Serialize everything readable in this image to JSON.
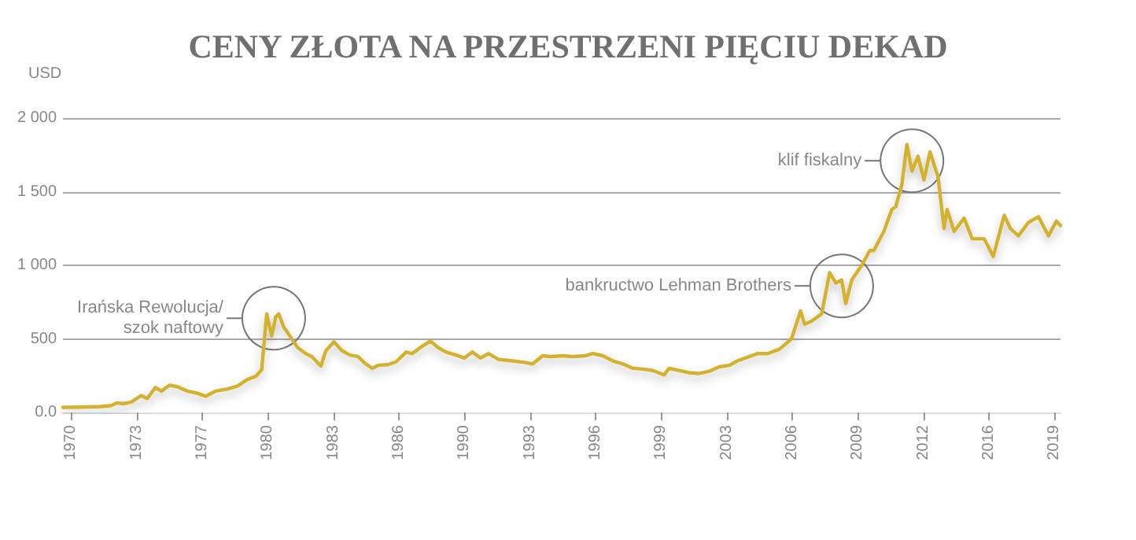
{
  "chart_data": {
    "type": "line",
    "title": "CENY ZŁOTA NA PRZESTRZENI PIĘCIU DEKAD",
    "ylabel": "USD",
    "x": [
      1969.6,
      1970.5,
      1971.5,
      1972.0,
      1972.3,
      1972.6,
      1973.0,
      1973.5,
      1973.8,
      1974.2,
      1974.5,
      1974.9,
      1975.3,
      1975.8,
      1976.3,
      1976.7,
      1977.2,
      1977.8,
      1978.3,
      1978.8,
      1979.2,
      1979.5,
      1979.75,
      1980.0,
      1980.2,
      1980.35,
      1980.6,
      1981.0,
      1981.3,
      1981.7,
      1982.0,
      1982.45,
      1982.7,
      1983.1,
      1983.5,
      1983.9,
      1984.3,
      1984.6,
      1985.0,
      1985.3,
      1985.8,
      1986.2,
      1986.7,
      1987.0,
      1987.5,
      1987.9,
      1988.3,
      1988.7,
      1989.2,
      1989.6,
      1990.0,
      1990.4,
      1990.8,
      1991.3,
      1992.0,
      1992.6,
      1993.0,
      1993.5,
      1993.9,
      1994.5,
      1995.0,
      1995.6,
      1996.0,
      1996.5,
      1997.0,
      1997.5,
      1998.0,
      1998.5,
      1999.0,
      1999.55,
      1999.8,
      2000.3,
      2000.8,
      2001.3,
      2001.8,
      2002.3,
      2002.8,
      2003.2,
      2003.7,
      2004.2,
      2004.7,
      2005.3,
      2005.9,
      2006.35,
      2006.55,
      2006.9,
      2007.4,
      2007.8,
      2008.1,
      2008.4,
      2008.6,
      2008.9,
      2009.4,
      2009.8,
      2010.0,
      2010.5,
      2010.9,
      2011.1,
      2011.4,
      2011.65,
      2011.9,
      2012.2,
      2012.5,
      2012.8,
      2013.2,
      2013.5,
      2013.65,
      2014.0,
      2014.5,
      2014.9,
      2015.5,
      2015.95,
      2016.5,
      2016.8,
      2017.2,
      2017.7,
      2018.2,
      2018.7,
      2019.1,
      2019.3
    ],
    "series": [
      {
        "color": "#d4b12f",
        "values": [
          35,
          36,
          40,
          47,
          65,
          60,
          70,
          115,
          95,
          170,
          145,
          185,
          175,
          145,
          130,
          110,
          145,
          160,
          180,
          225,
          245,
          290,
          670,
          520,
          650,
          670,
          580,
          500,
          440,
          400,
          380,
          315,
          420,
          480,
          420,
          390,
          380,
          340,
          300,
          320,
          325,
          345,
          410,
          400,
          450,
          485,
          440,
          410,
          390,
          370,
          410,
          370,
          400,
          360,
          350,
          340,
          330,
          385,
          380,
          385,
          380,
          385,
          400,
          385,
          350,
          330,
          300,
          295,
          285,
          255,
          300,
          285,
          270,
          265,
          280,
          310,
          320,
          350,
          375,
          400,
          400,
          430,
          500,
          690,
          600,
          620,
          670,
          950,
          880,
          900,
          740,
          900,
          1000,
          1100,
          1100,
          1230,
          1380,
          1400,
          1550,
          1820,
          1640,
          1740,
          1580,
          1770,
          1600,
          1250,
          1380,
          1230,
          1320,
          1180,
          1180,
          1060,
          1340,
          1250,
          1200,
          1290,
          1330,
          1200,
          1300,
          1270
        ]
      }
    ],
    "xlim": [
      1969.6,
      2019.3
    ],
    "xticks": [
      {
        "value": 1970,
        "label": "1970"
      },
      {
        "value": 1973.27,
        "label": "1973"
      },
      {
        "value": 1976.53,
        "label": "1977"
      },
      {
        "value": 1979.8,
        "label": "1980"
      },
      {
        "value": 1983.07,
        "label": "1983"
      },
      {
        "value": 1986.33,
        "label": "1986"
      },
      {
        "value": 1989.6,
        "label": "1990"
      },
      {
        "value": 1992.87,
        "label": "1993"
      },
      {
        "value": 1996.13,
        "label": "1996"
      },
      {
        "value": 1999.4,
        "label": "1999"
      },
      {
        "value": 2002.67,
        "label": "2003"
      },
      {
        "value": 2005.93,
        "label": "2006"
      },
      {
        "value": 2009.2,
        "label": "2009"
      },
      {
        "value": 2012.47,
        "label": "2012"
      },
      {
        "value": 2015.73,
        "label": "2016"
      },
      {
        "value": 2019,
        "label": "2019"
      }
    ],
    "ylim": [
      0,
      2000
    ],
    "yticks": [
      {
        "value": 0,
        "label": "0.0"
      },
      {
        "value": 500,
        "label": "500"
      },
      {
        "value": 1000,
        "label": "1 000"
      },
      {
        "value": 1500,
        "label": "1 500"
      },
      {
        "value": 2000,
        "label": "2 000"
      }
    ],
    "grid": "y",
    "marker": "none",
    "line_style": "solid",
    "annotations": [
      {
        "text": "Irańska Rewolucja/\nszok naftowy",
        "x": 1980.1,
        "y": 640
      },
      {
        "text": "bankructwo Lehman Brothers",
        "x": 2008.4,
        "y": 860
      },
      {
        "text": "klif fiskalny",
        "x": 2011.9,
        "y": 1710
      }
    ]
  }
}
